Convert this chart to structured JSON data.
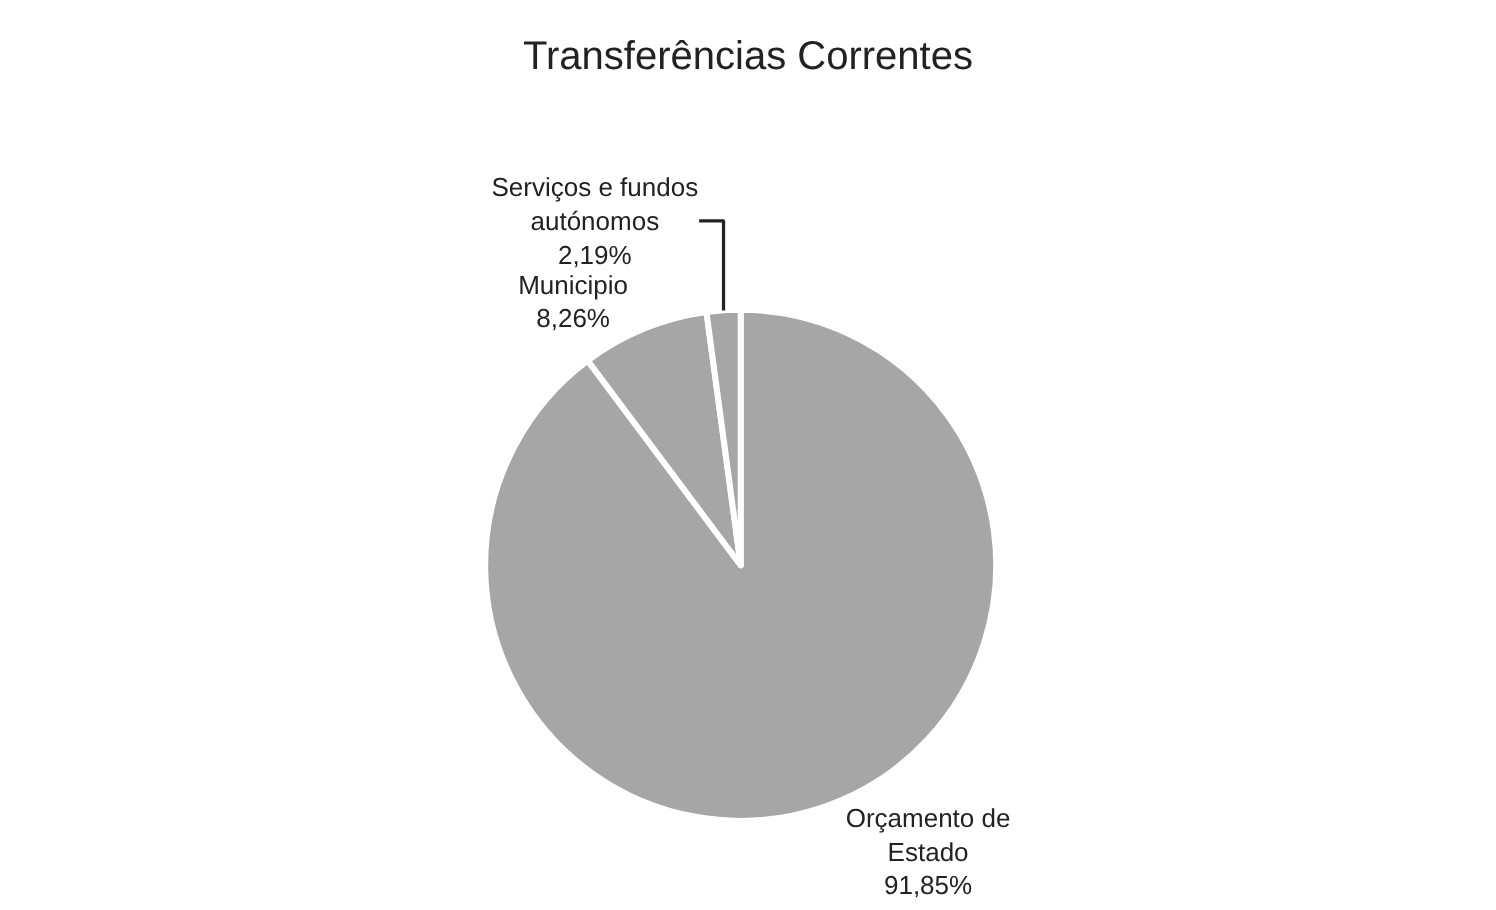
{
  "chart_data": {
    "type": "pie",
    "title": "Transferências Correntes",
    "categories": [
      "Orçamento de Estado",
      "Municipio",
      "Serviços e fundos autónomos"
    ],
    "values": [
      91.85,
      8.26,
      2.19
    ],
    "value_labels": [
      "91,85%",
      "8,26%",
      "2,19%"
    ],
    "colors": [
      "#a6a6a6",
      "#a6a6a6",
      "#a6a6a6"
    ],
    "legend": false
  }
}
